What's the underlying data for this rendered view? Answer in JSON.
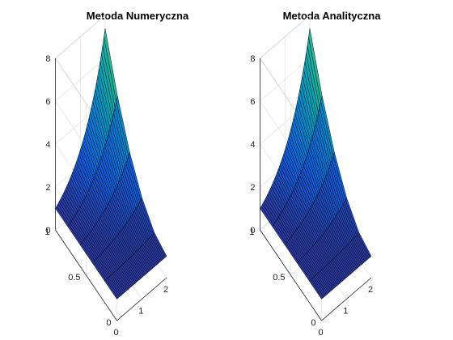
{
  "figure": {
    "background": "#ffffff"
  },
  "chart_data": [
    {
      "type": "surface3d",
      "title": "Metoda Numeryczna",
      "xlabel": "",
      "ylabel": "",
      "zlabel": "",
      "xlim": [
        0,
        2
      ],
      "ylim": [
        0,
        1
      ],
      "zlim": [
        0,
        8
      ],
      "x_ticks": [
        "0",
        "1",
        "2"
      ],
      "y_ticks": [
        "0",
        "0.5",
        "1"
      ],
      "z_ticks": [
        "0",
        "2",
        "4",
        "6",
        "8"
      ],
      "grid": true,
      "colormap": "parula",
      "function": "z = exp(x) * y^2 + 1 - y^2 style surface: z(x,0)=1, z(0,y)=1, z(2,1)=7.39",
      "x": [
        0,
        0.5,
        1,
        1.5,
        2
      ],
      "y": [
        0,
        0.25,
        0.5,
        0.75,
        1
      ],
      "z_corners": {
        "x0_y0": 1.0,
        "x2_y0": 1.0,
        "x0_y1": 1.0,
        "x2_y1": 7.39
      }
    },
    {
      "type": "surface3d",
      "title": "Metoda Analityczna",
      "xlabel": "",
      "ylabel": "",
      "zlabel": "",
      "xlim": [
        0,
        2
      ],
      "ylim": [
        0,
        1
      ],
      "zlim": [
        0,
        8
      ],
      "x_ticks": [
        "0",
        "1",
        "2"
      ],
      "y_ticks": [
        "0",
        "0.5",
        "1"
      ],
      "z_ticks": [
        "0",
        "2",
        "4",
        "6",
        "8"
      ],
      "grid": true,
      "colormap": "parula",
      "function": "z = exp(x) * y^2 + 1 - y^2 style surface: z(x,0)=1, z(0,y)=1, z(2,1)=7.39",
      "x": [
        0,
        0.5,
        1,
        1.5,
        2
      ],
      "y": [
        0,
        0.25,
        0.5,
        0.75,
        1
      ],
      "z_corners": {
        "x0_y0": 1.0,
        "x2_y0": 1.0,
        "x0_y1": 1.0,
        "x2_y1": 7.39
      }
    }
  ]
}
